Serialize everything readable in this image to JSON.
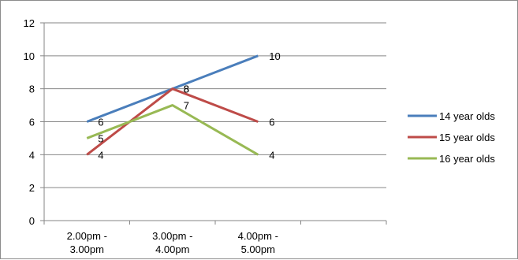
{
  "chart_data": {
    "type": "line",
    "categories": [
      "2.00pm - 3.00pm",
      "3.00pm - 4.00pm",
      "4.00pm - 5.00pm"
    ],
    "category_lines": [
      [
        "2.00pm -",
        "3.00pm"
      ],
      [
        "3.00pm -",
        "4.00pm"
      ],
      [
        "4.00pm -",
        "5.00pm"
      ]
    ],
    "series": [
      {
        "name": "14 year olds",
        "values": [
          6,
          8,
          10
        ],
        "color": "#4a7ebb"
      },
      {
        "name": "15 year olds",
        "values": [
          4,
          8,
          6
        ],
        "color": "#be4b48"
      },
      {
        "name": "16 year olds",
        "values": [
          5,
          7,
          4
        ],
        "color": "#98b954"
      }
    ],
    "ylim": [
      0,
      12
    ],
    "yticks": [
      0,
      2,
      4,
      6,
      8,
      10,
      12
    ],
    "grid": true,
    "legend": "right",
    "data_labels": true,
    "title": "",
    "xlabel": "",
    "ylabel": ""
  }
}
